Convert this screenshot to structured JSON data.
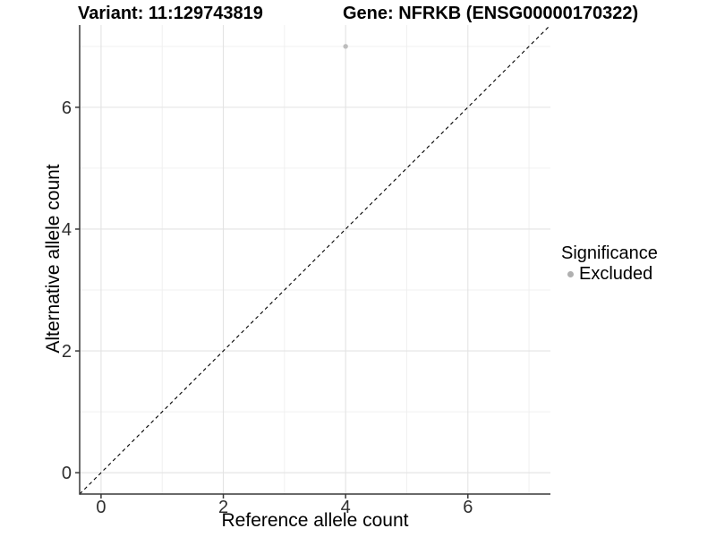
{
  "header": {
    "variant_title": "Variant: 11:129743819",
    "gene_title": "Gene: NFRKB (ENSG00000170322)"
  },
  "chart_data": {
    "type": "scatter",
    "xlabel": "Reference allele count",
    "ylabel": "Alternative allele count",
    "xlim": [
      -0.35,
      7.35
    ],
    "ylim": [
      -0.35,
      7.35
    ],
    "x_major_ticks": [
      0,
      2,
      4,
      6
    ],
    "y_major_ticks": [
      0,
      2,
      4,
      6
    ],
    "x_minor_gridlines": [
      1,
      3,
      5,
      7
    ],
    "y_minor_gridlines": [
      1,
      3,
      5,
      7
    ],
    "grid": "on",
    "reference_line": {
      "type": "identity y=x",
      "style": "dashed",
      "color": "#000000"
    },
    "series": [
      {
        "name": "Excluded",
        "color": "#bdbdbd",
        "points": [
          {
            "x": 4,
            "y": 7
          }
        ]
      }
    ],
    "legend": {
      "position": "right",
      "title": "Significance",
      "items": [
        {
          "label": "Excluded",
          "color": "#b0b0b0"
        }
      ]
    }
  },
  "style": {
    "background": "#ffffff",
    "major_grid_color": "#e3e3e3",
    "minor_grid_color": "#f0f0f0",
    "axis_line_color": "#383838",
    "tick_label_color": "#2e2e2e"
  }
}
